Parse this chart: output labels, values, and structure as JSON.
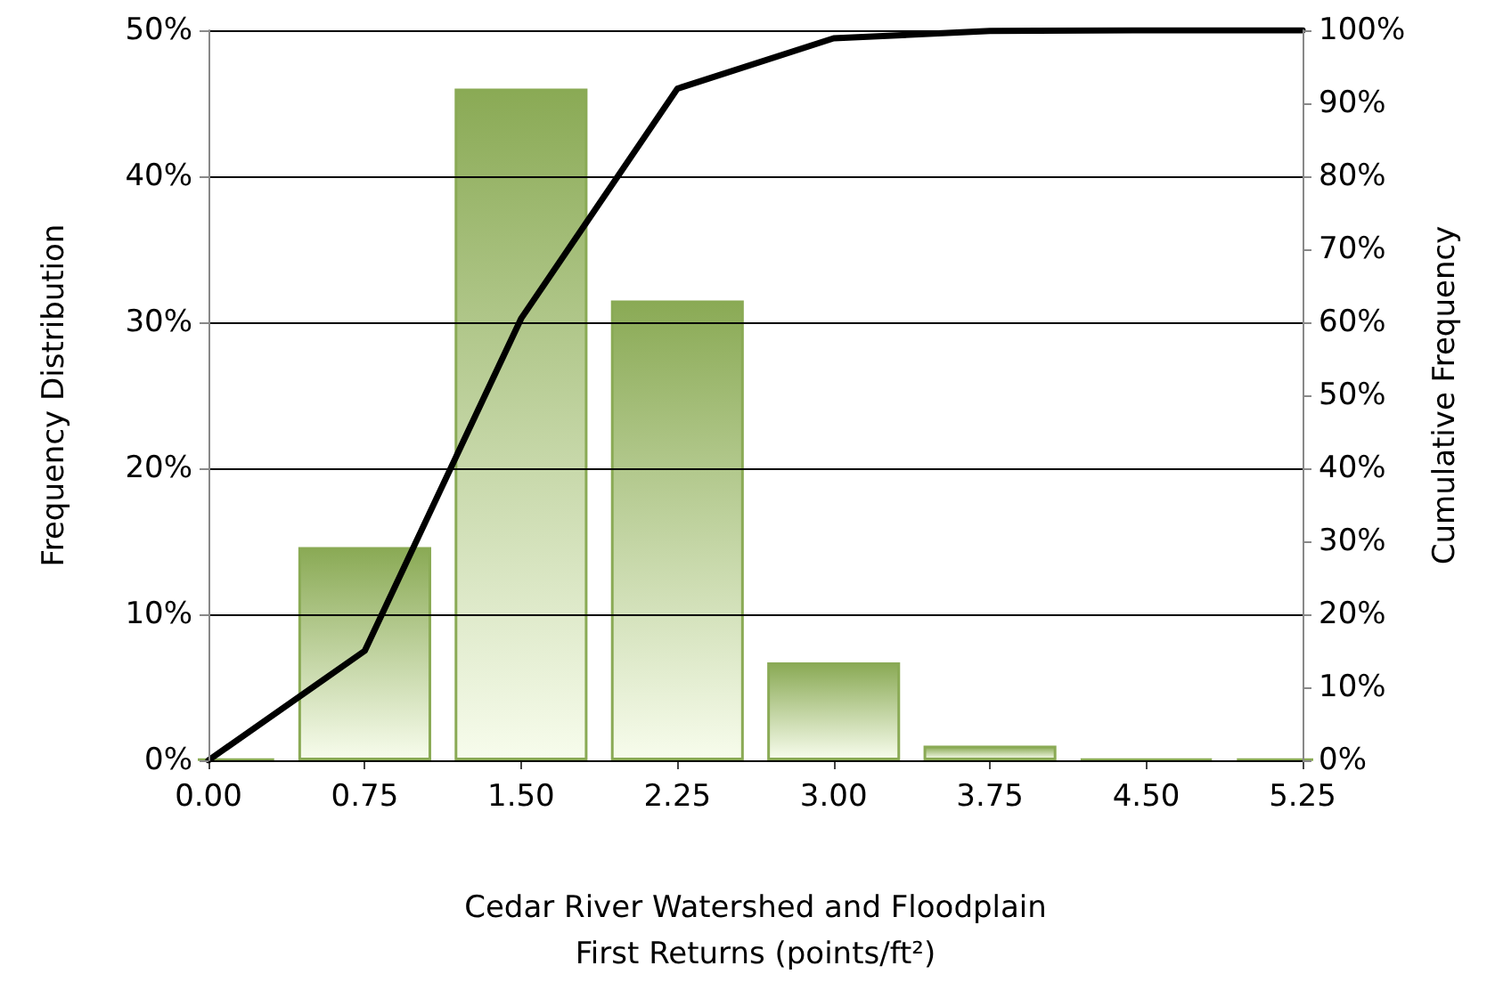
{
  "chart_data": {
    "type": "bar",
    "xlabel": "Cedar River Watershed and Floodplain\nFirst Returns (points/ft²)",
    "ylabel": "Frequency Distribution",
    "y2label": "Cumulative Frequency",
    "categories": [
      "0.00",
      "0.75",
      "1.50",
      "2.25",
      "3.00",
      "3.75",
      "4.50",
      "5.25"
    ],
    "series": [
      {
        "type": "bar",
        "color": "#8aaa55",
        "values": [
          0.1,
          14.6,
          46,
          31.5,
          6.7,
          1.0,
          0.1,
          0.1
        ]
      },
      {
        "type": "line",
        "axis": "y2",
        "color": "#000000",
        "values": [
          0,
          15,
          60.5,
          92,
          98.9,
          99.9,
          100,
          100
        ]
      }
    ],
    "ylim": [
      0,
      50
    ],
    "yticks": [
      {
        "value": 0,
        "label": "0%"
      },
      {
        "value": 10,
        "label": "10%"
      },
      {
        "value": 20,
        "label": "20%"
      },
      {
        "value": 30,
        "label": "30%"
      },
      {
        "value": 40,
        "label": "40%"
      },
      {
        "value": 50,
        "label": "50%"
      }
    ],
    "y2lim": [
      0,
      100
    ],
    "y2ticks": [
      {
        "value": 0,
        "label": "0%"
      },
      {
        "value": 10,
        "label": "10%"
      },
      {
        "value": 20,
        "label": "20%"
      },
      {
        "value": 30,
        "label": "30%"
      },
      {
        "value": 40,
        "label": "40%"
      },
      {
        "value": 50,
        "label": "50%"
      },
      {
        "value": 60,
        "label": "60%"
      },
      {
        "value": 70,
        "label": "70%"
      },
      {
        "value": 80,
        "label": "80%"
      },
      {
        "value": 90,
        "label": "90%"
      },
      {
        "value": 100,
        "label": "100%"
      }
    ],
    "grid": "y",
    "marker": "none",
    "line_style": "solid"
  }
}
